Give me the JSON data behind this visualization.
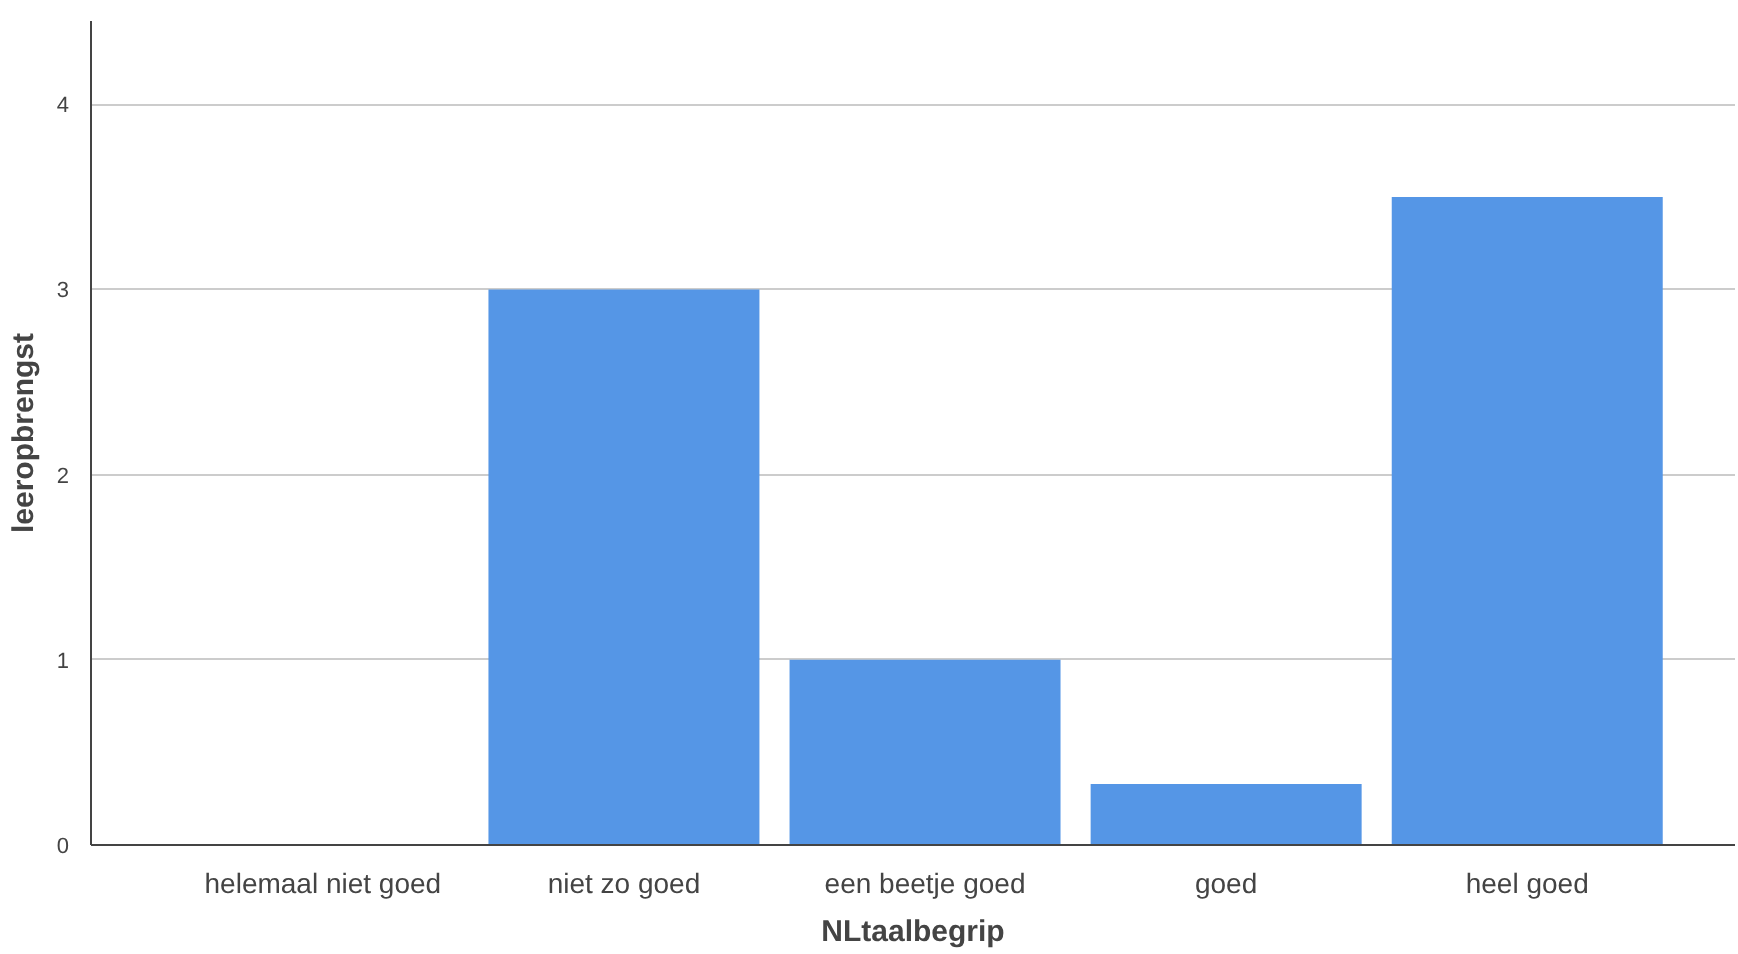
{
  "chart_data": {
    "type": "bar",
    "xlabel": "NLtaalbegrip",
    "ylabel": "leeropbrengst",
    "categories": [
      "helemaal niet goed",
      "niet zo goed",
      "een beetje goed",
      "goed",
      "heel goed"
    ],
    "values": [
      0,
      3,
      1,
      0.33,
      3.5
    ],
    "color": "#5596e6",
    "ylim": [
      0,
      4.45
    ],
    "yticks": [
      0,
      1,
      2,
      3,
      4
    ],
    "grid": "y"
  }
}
